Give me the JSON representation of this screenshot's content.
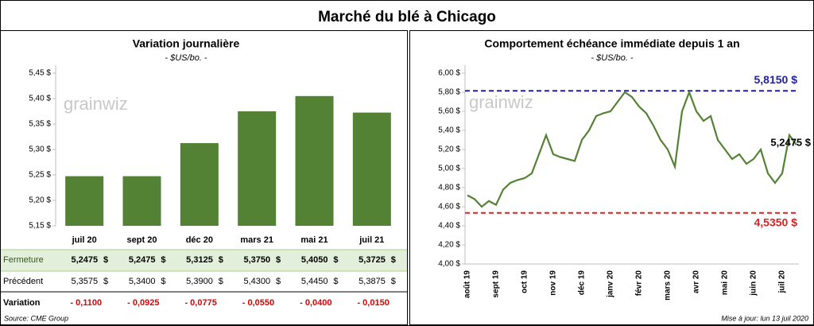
{
  "title": "Marché du blé à Chicago",
  "source": "Source: CME Group",
  "updated": "Mise à jour: lun 13 juil 2020",
  "watermark": "grainwiz",
  "chart_data": [
    {
      "type": "bar",
      "title": "Variation journalière",
      "subtitle": "- $US/bo. -",
      "categories": [
        "juil 20",
        "sept 20",
        "déc 20",
        "mars 21",
        "mai 21",
        "juil 21"
      ],
      "values": [
        5.2475,
        5.2475,
        5.3125,
        5.375,
        5.405,
        5.3725
      ],
      "color": "#548235",
      "ylim": [
        5.15,
        5.45
      ],
      "yticks": [
        {
          "value": 5.15,
          "label": "5,15 $"
        },
        {
          "value": 5.2,
          "label": "5,20 $"
        },
        {
          "value": 5.25,
          "label": "5,25 $"
        },
        {
          "value": 5.3,
          "label": "5,30 $"
        },
        {
          "value": 5.35,
          "label": "5,35 $"
        },
        {
          "value": 5.4,
          "label": "5,40 $"
        },
        {
          "value": 5.45,
          "label": "5,45 $"
        }
      ],
      "grid": false
    },
    {
      "type": "line",
      "title": "Comportement  échéance immédiate depuis 1 an",
      "subtitle": "- $US/bo. -",
      "categories": [
        "août 19",
        null,
        null,
        null,
        "sept 19",
        null,
        null,
        null,
        "oct 19",
        null,
        null,
        null,
        "nov 19",
        null,
        null,
        null,
        "déc 19",
        null,
        null,
        null,
        "janv 20",
        null,
        null,
        null,
        "févr 20",
        null,
        null,
        null,
        "mars 20",
        null,
        null,
        null,
        "avr 20",
        null,
        null,
        null,
        "mai 20",
        null,
        null,
        null,
        "juin 20",
        null,
        null,
        null,
        "juil 20",
        null,
        null
      ],
      "series": [
        {
          "name": "Échéance immédiate",
          "color": "#548235",
          "values": [
            4.72,
            4.68,
            4.6,
            4.66,
            4.62,
            4.78,
            4.85,
            4.88,
            4.9,
            4.95,
            5.15,
            5.35,
            5.15,
            5.12,
            5.1,
            5.08,
            5.3,
            5.4,
            5.55,
            5.58,
            5.6,
            5.7,
            5.8,
            5.75,
            5.65,
            5.58,
            5.45,
            5.3,
            5.2,
            5.02,
            5.6,
            5.8,
            5.6,
            5.5,
            5.55,
            5.3,
            5.2,
            5.1,
            5.15,
            5.05,
            5.1,
            5.2,
            4.95,
            4.85,
            4.95,
            5.35,
            5.2475
          ]
        }
      ],
      "ylim": [
        4.0,
        6.0
      ],
      "yticks": [
        {
          "value": 4.0,
          "label": "4,00 $"
        },
        {
          "value": 4.2,
          "label": "4,20 $"
        },
        {
          "value": 4.4,
          "label": "4,40 $"
        },
        {
          "value": 4.6,
          "label": "4,60 $"
        },
        {
          "value": 4.8,
          "label": "4,80 $"
        },
        {
          "value": 5.0,
          "label": "5,00 $"
        },
        {
          "value": 5.2,
          "label": "5,20 $"
        },
        {
          "value": 5.4,
          "label": "5,40 $"
        },
        {
          "value": 5.6,
          "label": "5,60 $"
        },
        {
          "value": 5.8,
          "label": "5,80 $"
        },
        {
          "value": 6.0,
          "label": "6,00 $"
        }
      ],
      "reference_lines": [
        {
          "value": 5.815,
          "label": "5,8150 $",
          "color": "#1f1fa8"
        },
        {
          "value": 4.535,
          "label": "4,5350 $",
          "color": "#e02020"
        }
      ],
      "last_label": {
        "value": 5.2475,
        "label": "5,2475 $"
      },
      "grid": false
    }
  ],
  "table": {
    "rows": [
      {
        "label": "Fermeture",
        "values": [
          "5,2475",
          "5,2475",
          "5,3125",
          "5,3750",
          "5,4050",
          "5,3725"
        ],
        "unit": "$",
        "color": "#000000"
      },
      {
        "label": "Précédent",
        "values": [
          "5,3575",
          "5,3400",
          "5,3900",
          "5,4300",
          "5,4450",
          "5,3875"
        ],
        "unit": "$",
        "color": "#000000"
      },
      {
        "label": "Variation",
        "values": [
          "- 0,1100",
          "- 0,0925",
          "- 0,0775",
          "- 0,0550",
          "- 0,0400",
          "- 0,0150"
        ],
        "color": "#e00000"
      }
    ]
  }
}
